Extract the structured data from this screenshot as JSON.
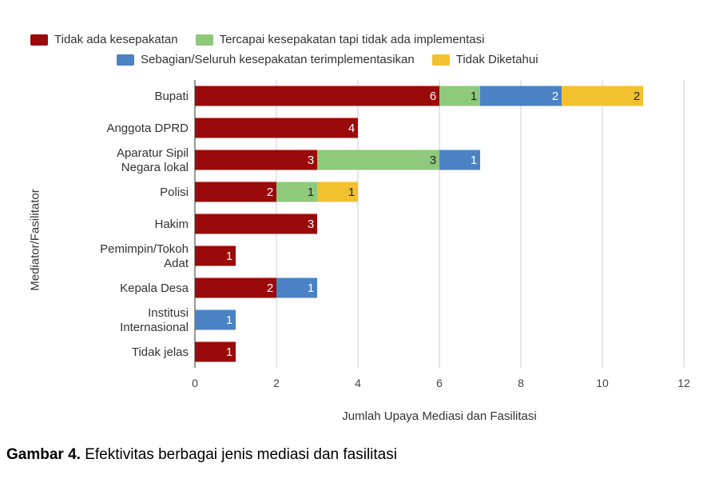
{
  "chart_data": {
    "type": "bar",
    "orientation": "horizontal",
    "stacked": true,
    "categories": [
      "Bupati",
      "Anggota DPRD",
      "Aparatur Sipil Negara lokal",
      "Polisi",
      "Hakim",
      "Pemimpin/Tokoh Adat",
      "Kepala Desa",
      "Institusi Internasional",
      "Tidak jelas"
    ],
    "category_lines": [
      [
        "Bupati"
      ],
      [
        "Anggota DPRD"
      ],
      [
        "Aparatur Sipil",
        "Negara lokal"
      ],
      [
        "Polisi"
      ],
      [
        "Hakim"
      ],
      [
        "Pemimpin/Tokoh",
        "Adat"
      ],
      [
        "Kepala Desa"
      ],
      [
        "Institusi",
        "Internasional"
      ],
      [
        "Tidak jelas"
      ]
    ],
    "series": [
      {
        "name": "Tidak ada kesepakatan",
        "color": "#9b0a0a",
        "values": [
          6,
          4,
          3,
          2,
          3,
          1,
          2,
          0,
          1
        ]
      },
      {
        "name": "Tercapai kesepakatan tapi tidak ada implementasi",
        "color": "#8fc97c",
        "values": [
          1,
          0,
          3,
          1,
          0,
          0,
          0,
          0,
          0
        ]
      },
      {
        "name": "Sebagian/Seluruh kesepakatan terimplementasikan",
        "color": "#4a82c4",
        "values": [
          2,
          0,
          1,
          0,
          0,
          0,
          1,
          1,
          0
        ]
      },
      {
        "name": "Tidak Diketahui",
        "color": "#f2c12e",
        "values": [
          2,
          0,
          0,
          1,
          0,
          0,
          0,
          0,
          0
        ]
      }
    ],
    "xlabel": "Jumlah Upaya Mediasi dan Fasilitasi",
    "ylabel": "Mediator/Fasilitator",
    "xlim": [
      0,
      12
    ],
    "xticks": [
      0,
      2,
      4,
      6,
      8,
      10,
      12
    ],
    "grid": true,
    "legend_position": "top"
  },
  "caption": {
    "label": "Gambar 4.",
    "text": " Efektivitas berbagai jenis mediasi dan fasilitasi"
  }
}
